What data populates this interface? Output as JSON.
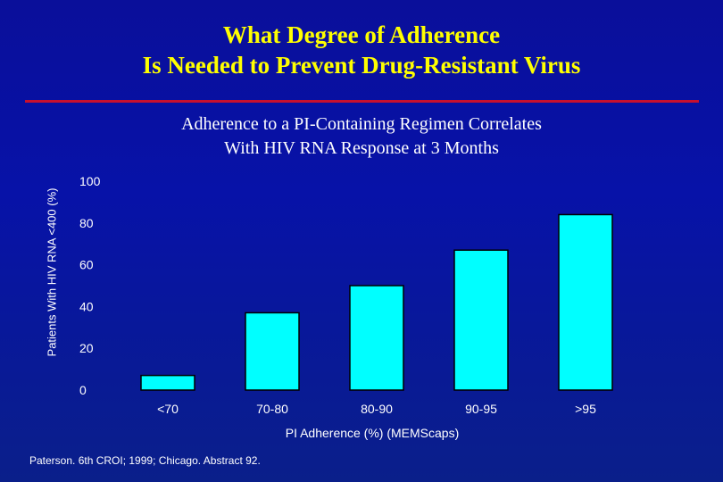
{
  "slide": {
    "title_line1": "What Degree of Adherence",
    "title_line2": "Is Needed to Prevent Drug-Resistant Virus",
    "source": "Paterson. 6th CROI; 1999; Chicago. Abstract 92."
  },
  "colors": {
    "background": "#0712a8",
    "title": "#ffff00",
    "rule": "#c8102e",
    "bar": "#00ffff",
    "text": "#ffffff"
  },
  "chart_data": {
    "type": "bar",
    "title_line1": "Adherence to a PI-Containing Regimen Correlates",
    "title_line2": "With HIV RNA Response at 3 Months",
    "ylabel": "Patients With HIV RNA <400 (%)",
    "xlabel": "PI Adherence (%) (MEMScaps)",
    "categories": [
      "<70",
      "70-80",
      "80-90",
      "90-95",
      ">95"
    ],
    "values": [
      7,
      37,
      50,
      67,
      84
    ],
    "yticks": [
      0,
      20,
      40,
      60,
      80,
      100
    ],
    "ylim": [
      0,
      100
    ],
    "grid": false
  }
}
